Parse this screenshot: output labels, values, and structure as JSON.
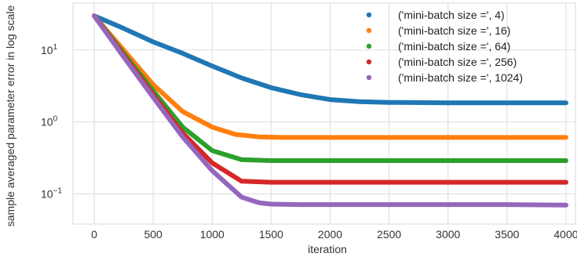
{
  "chart_data": {
    "type": "line",
    "title": "",
    "xlabel": "iteration",
    "ylabel": "sample averaged parameter error in log scale",
    "xlim": [
      -180,
      4080
    ],
    "ylim": [
      0.038,
      45
    ],
    "yscale": "log",
    "grid": true,
    "legend_position": "top-right",
    "x_ticks": [
      0,
      500,
      1000,
      1500,
      2000,
      2500,
      3000,
      3500,
      4000
    ],
    "y_ticks": [
      {
        "value": 10,
        "base": "10",
        "exp": "1"
      },
      {
        "value": 1,
        "base": "10",
        "exp": "0"
      },
      {
        "value": 0.1,
        "base": "10",
        "exp": "−1"
      }
    ],
    "series": [
      {
        "name": "('mini-batch size =', 4)",
        "color": "#1f77b4",
        "x": [
          0,
          250,
          500,
          750,
          1000,
          1250,
          1500,
          1750,
          2000,
          2250,
          2500,
          3000,
          3500,
          4000
        ],
        "y": [
          30,
          20,
          13,
          9,
          6,
          4.1,
          3.0,
          2.4,
          2.05,
          1.92,
          1.87,
          1.85,
          1.85,
          1.85
        ]
      },
      {
        "name": "('mini-batch size =', 16)",
        "color": "#ff7f0e",
        "x": [
          0,
          250,
          500,
          750,
          1000,
          1200,
          1400,
          1600,
          2000,
          2500,
          3000,
          3500,
          4000
        ],
        "y": [
          30,
          10,
          3.3,
          1.4,
          0.85,
          0.67,
          0.62,
          0.61,
          0.61,
          0.61,
          0.61,
          0.61,
          0.61
        ]
      },
      {
        "name": "('mini-batch size =', 64)",
        "color": "#2ca02c",
        "x": [
          0,
          250,
          500,
          750,
          1000,
          1250,
          1500,
          1750,
          2000,
          2500,
          3000,
          3500,
          4000
        ],
        "y": [
          30,
          9,
          2.7,
          0.85,
          0.4,
          0.3,
          0.29,
          0.29,
          0.29,
          0.29,
          0.29,
          0.29,
          0.29
        ]
      },
      {
        "name": "('mini-batch size =', 256)",
        "color": "#d62728",
        "x": [
          0,
          250,
          500,
          750,
          1000,
          1250,
          1500,
          2000,
          2500,
          3000,
          3500,
          4000
        ],
        "y": [
          30,
          8.5,
          2.4,
          0.7,
          0.27,
          0.15,
          0.145,
          0.145,
          0.145,
          0.145,
          0.145,
          0.145
        ]
      },
      {
        "name": "('mini-batch size =', 1024)",
        "color": "#9467bd",
        "x": [
          0,
          250,
          500,
          750,
          1000,
          1250,
          1400,
          1500,
          1750,
          2000,
          2500,
          3000,
          3500,
          4000
        ],
        "y": [
          30,
          8,
          2.2,
          0.62,
          0.21,
          0.09,
          0.075,
          0.072,
          0.071,
          0.071,
          0.071,
          0.071,
          0.071,
          0.07
        ]
      }
    ]
  }
}
